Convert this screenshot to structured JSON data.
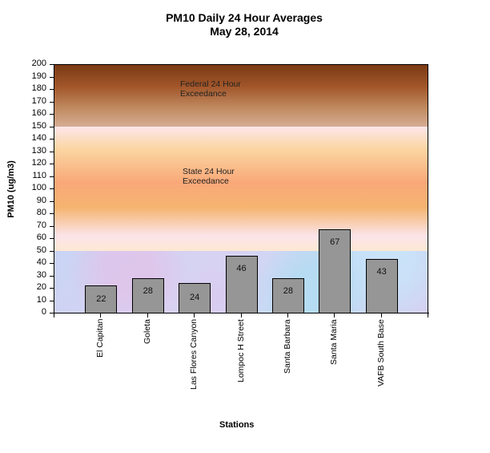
{
  "chart_data": {
    "type": "bar",
    "title": "PM10 Daily 24 Hour Averages",
    "subtitle": "May 28, 2014",
    "xlabel": "Stations",
    "ylabel": "PM10 (ug/m3)",
    "ylim": [
      0,
      200
    ],
    "yticks": [
      0,
      10,
      20,
      30,
      40,
      50,
      60,
      70,
      80,
      90,
      100,
      110,
      120,
      130,
      140,
      150,
      160,
      170,
      180,
      190,
      200
    ],
    "grid": false,
    "legend": null,
    "categories": [
      "El Capitan",
      "Goleta",
      "Las Flores Canyon",
      "Lompoc H Street",
      "Santa Barbara",
      "Santa Maria",
      "VAFB South Base"
    ],
    "values": [
      22,
      28,
      24,
      46,
      28,
      67,
      43
    ],
    "bar_color": "#969696",
    "bands": [
      {
        "label_line1": "Federal 24 Hour",
        "label_line2": "Exceedance",
        "from": 150,
        "to": 200,
        "color": "#a2562a"
      },
      {
        "label_line1": "State 24 Hour",
        "label_line2": "Exceedance",
        "from": 50,
        "to": 150,
        "color": "#f9a878"
      },
      {
        "label_line1": "",
        "label_line2": "",
        "from": 0,
        "to": 50,
        "color": "#c9d4f4"
      }
    ]
  }
}
